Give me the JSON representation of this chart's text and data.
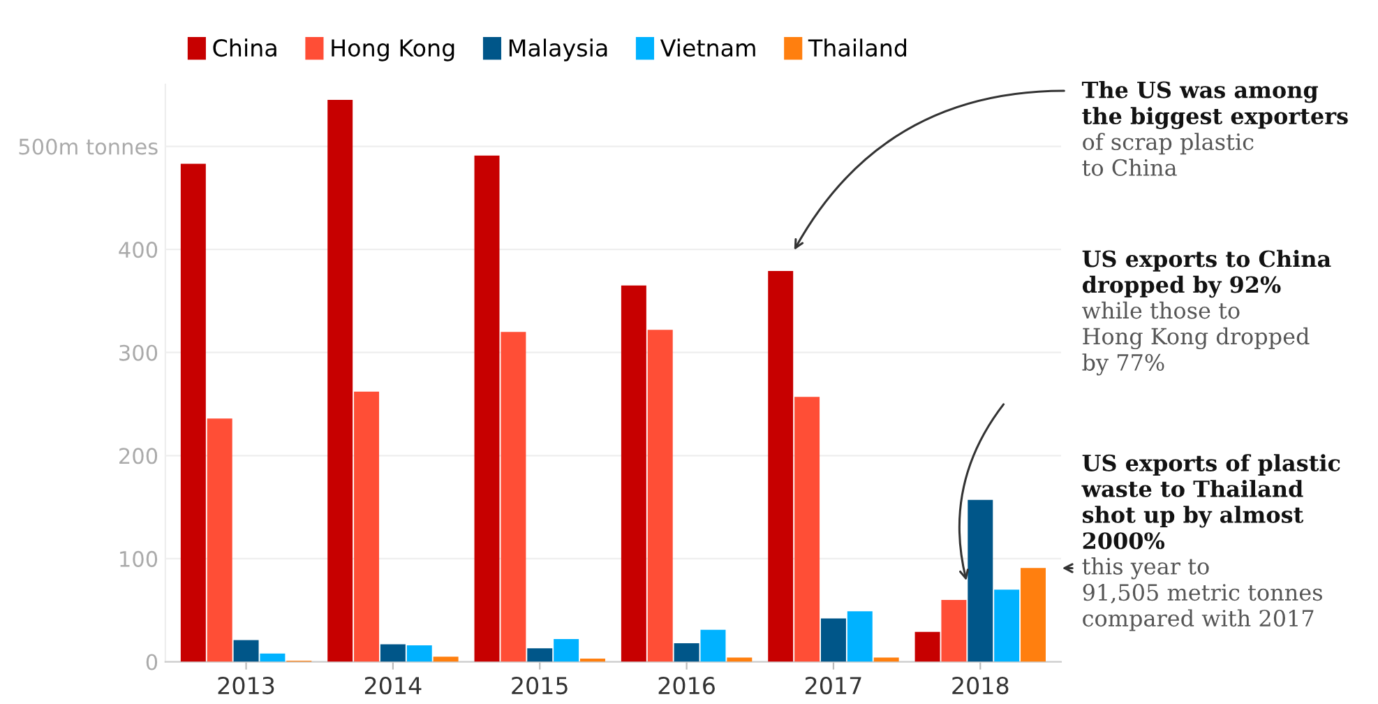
{
  "chart_data": {
    "type": "bar",
    "categories": [
      "2013",
      "2014",
      "2015",
      "2016",
      "2017",
      "2018"
    ],
    "series": [
      {
        "name": "China",
        "color": "#c70000",
        "values": [
          483,
          545,
          491,
          365,
          379,
          29
        ]
      },
      {
        "name": "Hong Kong",
        "color": "#ff4e36",
        "values": [
          236,
          262,
          320,
          322,
          257,
          60
        ]
      },
      {
        "name": "Malaysia",
        "color": "#005689",
        "values": [
          21,
          17,
          13,
          18,
          42,
          157
        ]
      },
      {
        "name": "Vietnam",
        "color": "#00b2ff",
        "values": [
          8,
          16,
          22,
          31,
          49,
          70
        ]
      },
      {
        "name": "Thailand",
        "color": "#ff7f0f",
        "values": [
          1,
          5,
          3,
          4,
          4,
          91
        ]
      }
    ],
    "ylim": [
      0,
      560
    ],
    "yticks": [
      0,
      100,
      200,
      300,
      400,
      {
        "value": 500,
        "label": "500m tonnes"
      }
    ],
    "grid": "y",
    "legend": "top left",
    "annotations": [
      "The US was among\nthe biggest exporters",
      "of scrap plastic\nto China",
      "US exports to China\ndropped by 92%",
      "while those to\nHong Kong dropped\nby 77%",
      "US exports of plastic\nwaste to Thailand\nshot up by almost\n2000%",
      "this year to\n91,505 metric tonnes\ncompared with 2017"
    ]
  }
}
